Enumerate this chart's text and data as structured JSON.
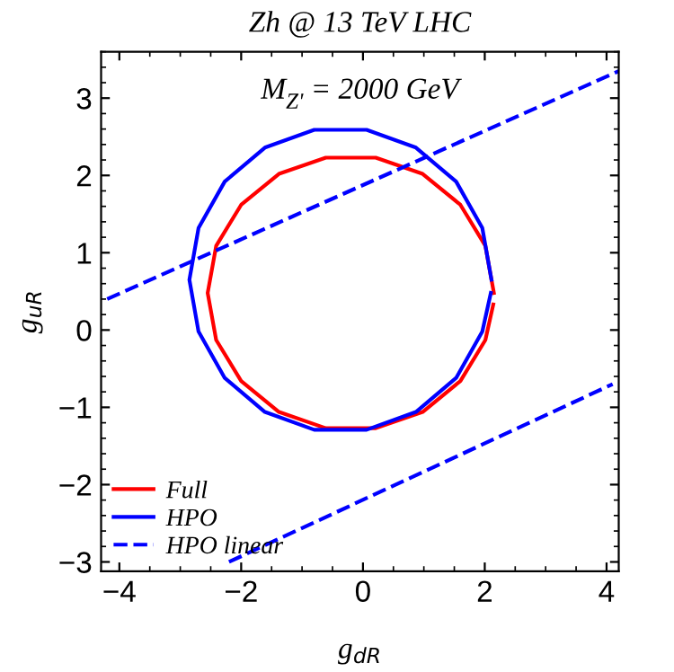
{
  "chart_data": {
    "type": "line",
    "title": "Zh @ 13 TeV LHC",
    "xlabel": "g$_{dR}$",
    "ylabel": "g$_{uR}$",
    "annotations": [
      "M$_{Z'}$ = 2000 GeV"
    ],
    "xlim": [
      -4.3,
      4.2
    ],
    "ylim": [
      -3.12,
      3.6
    ],
    "xticks": [
      -4,
      -2,
      0,
      2,
      4
    ],
    "yticks": [
      -3,
      -2,
      -1,
      0,
      1,
      2,
      3
    ],
    "grid": false,
    "legend": "bottom left",
    "marker": "none",
    "series": [
      {
        "name": "Full",
        "color": "#ff0000",
        "line_style": "solid",
        "x": [
          2.15,
          2.01,
          1.6,
          0.98,
          0.21,
          -0.61,
          -1.38,
          -2.0,
          -2.41,
          -2.55,
          -2.41,
          -2.0,
          -1.38,
          -0.61,
          0.21,
          0.98,
          1.6,
          2.01,
          2.14
        ],
        "values": [
          0.48,
          1.09,
          1.62,
          2.02,
          2.23,
          2.23,
          2.02,
          1.62,
          1.09,
          0.48,
          -0.13,
          -0.66,
          -1.06,
          -1.27,
          -1.27,
          -1.06,
          -0.66,
          -0.13,
          0.33
        ]
      },
      {
        "name": "HPO",
        "color": "#0000ff",
        "line_style": "solid",
        "x": [
          2.11,
          1.96,
          1.53,
          0.87,
          0.06,
          -0.8,
          -1.61,
          -2.27,
          -2.7,
          -2.85,
          -2.7,
          -2.27,
          -1.61,
          -0.8,
          0.06,
          0.87,
          1.53,
          1.96,
          2.1
        ],
        "values": [
          0.65,
          1.32,
          1.92,
          2.36,
          2.59,
          2.59,
          2.36,
          1.92,
          1.32,
          0.65,
          -0.02,
          -0.62,
          -1.06,
          -1.29,
          -1.29,
          -1.06,
          -0.62,
          -0.02,
          0.48
        ]
      },
      {
        "name": "HPO linear",
        "color": "#0000ff",
        "line_style": "dashed",
        "x": [
          -4.2,
          4.2
        ],
        "values": [
          0.4,
          3.35
        ]
      },
      {
        "color": "#0000ff",
        "line_style": "dashed",
        "x": [
          -2.2,
          4.1
        ],
        "values": [
          -3.0,
          -0.7
        ]
      }
    ]
  }
}
